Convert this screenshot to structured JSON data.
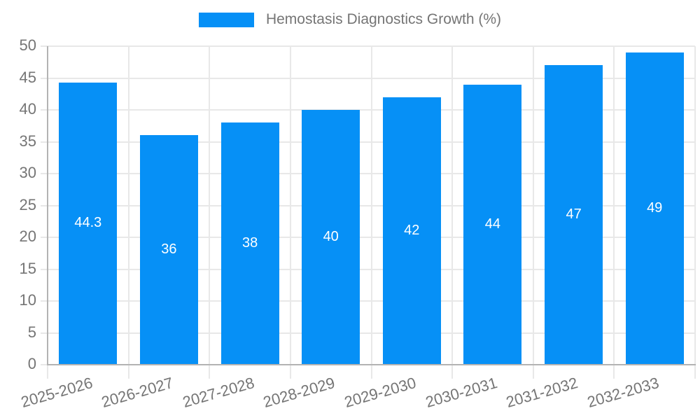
{
  "legend": {
    "label": "Hemostasis Diagnostics Growth (%)"
  },
  "chart_data": {
    "type": "bar",
    "title": "Hemostasis Diagnostics Growth (%)",
    "categories": [
      "2025-2026",
      "2026-2027",
      "2027-2028",
      "2028-2029",
      "2029-2030",
      "2030-2031",
      "2031-2032",
      "2032-2033"
    ],
    "values": [
      44.3,
      36,
      38,
      40,
      42,
      44,
      47,
      49
    ],
    "value_labels": [
      "44.3",
      "36",
      "38",
      "40",
      "42",
      "44",
      "47",
      "49"
    ],
    "series_name": "Hemostasis Diagnostics Growth (%)",
    "xlabel": "",
    "ylabel": "",
    "ylim": [
      0,
      50
    ],
    "ytick_step": 5,
    "yticks": [
      0,
      5,
      10,
      15,
      20,
      25,
      30,
      35,
      40,
      45,
      50
    ],
    "grid": true,
    "legend_position": "top-center"
  },
  "colors": {
    "bar": "#0690F6",
    "axis": "#b3b3b3",
    "grid": "#e8e8e8",
    "tick_text": "#757575",
    "bar_label": "#ffffff",
    "background": "#ffffff"
  }
}
